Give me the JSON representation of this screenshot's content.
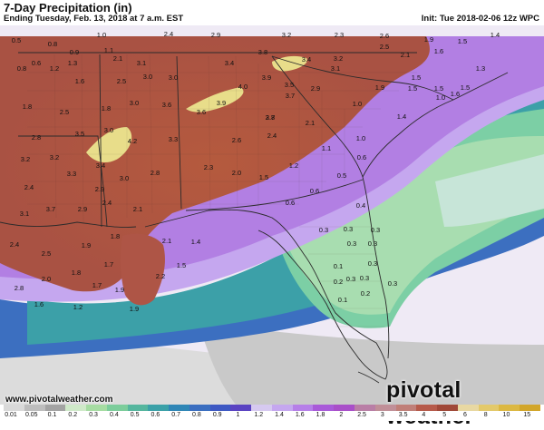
{
  "header": {
    "title": "7-Day Precipitation (in)",
    "subtitle": "Ending Tuesday, Feb. 13, 2018 at 7 a.m. EST",
    "init": "Init: Tue 2018-02-06 12z WPC"
  },
  "footer": {
    "website": "www.pivotalweather.com",
    "brand": "pivotal weather"
  },
  "colorbar": {
    "ticks": [
      "0.01",
      "0.05",
      "0.1",
      "0.2",
      "0.3",
      "0.4",
      "0.5",
      "0.6",
      "0.7",
      "0.8",
      "0.9",
      "1",
      "1.2",
      "1.4",
      "1.6",
      "1.8",
      "2",
      "2.5",
      "3",
      "3.5",
      "4",
      "5",
      "6",
      "8",
      "10",
      "15"
    ],
    "colors": [
      "#d9d9d9",
      "#bdbdbd",
      "#a3a3a3",
      "#cfe9c9",
      "#a6dca2",
      "#7ccd9b",
      "#55b69e",
      "#3ba1a8",
      "#2f86b6",
      "#3a6ec0",
      "#3d58c3",
      "#5a43c2",
      "#d6c9f0",
      "#c5a7ef",
      "#b67fe8",
      "#a95ad9",
      "#a94fc9",
      "#b97ea6",
      "#c08f98",
      "#c07f78",
      "#b65a4a",
      "#a04838",
      "#e8d8a2",
      "#e3c96a",
      "#dcb842",
      "#d2a62a"
    ]
  },
  "map": {
    "region": "Southeastern United States",
    "accent_colors": {
      "heavy": "#a95243",
      "peak": "#e8dd8a",
      "moderate": "#b77ed8",
      "light": "#7ccfa5",
      "minimal": "#a3a3a3"
    },
    "values": [
      {
        "t": "0.5"
      },
      {
        "t": "0.8"
      },
      {
        "t": "1.0"
      },
      {
        "t": "2.4"
      },
      {
        "t": "2.9"
      },
      {
        "t": "3.2"
      },
      {
        "t": "2.3"
      },
      {
        "t": "2.6"
      },
      {
        "t": "1.9"
      },
      {
        "t": "1.5"
      },
      {
        "t": "1.4"
      },
      {
        "t": "0.6"
      },
      {
        "t": "0.9"
      },
      {
        "t": "1.1"
      },
      {
        "t": "2.5"
      },
      {
        "t": "1.3"
      },
      {
        "t": "2.1"
      },
      {
        "t": "3.1"
      },
      {
        "t": "3.4"
      },
      {
        "t": "3.8"
      },
      {
        "t": "3.4"
      },
      {
        "t": "3.2"
      },
      {
        "t": "2.1"
      },
      {
        "t": "1.6"
      },
      {
        "t": "0.8"
      },
      {
        "t": "1.2"
      },
      {
        "t": "1.6"
      },
      {
        "t": "2.5"
      },
      {
        "t": "3.0"
      },
      {
        "t": "3.0"
      },
      {
        "t": "3.9"
      },
      {
        "t": "3.1"
      },
      {
        "t": "1.5"
      },
      {
        "t": "1.3"
      },
      {
        "t": "1.8"
      },
      {
        "t": "3.6"
      },
      {
        "t": "4.0"
      },
      {
        "t": "3.5"
      },
      {
        "t": "2.9"
      },
      {
        "t": "1.9"
      },
      {
        "t": "1.5"
      },
      {
        "t": "1.5"
      },
      {
        "t": "1.8"
      },
      {
        "t": "3.0"
      },
      {
        "t": "3.9"
      },
      {
        "t": "3.7"
      },
      {
        "t": "1.5"
      },
      {
        "t": "1.6"
      },
      {
        "t": "1.0"
      },
      {
        "t": "2.5"
      },
      {
        "t": "3.0"
      },
      {
        "t": "3.6"
      },
      {
        "t": "3.8"
      },
      {
        "t": "2.7"
      },
      {
        "t": "2.1"
      },
      {
        "t": "1.0"
      },
      {
        "t": "1.4"
      },
      {
        "t": "2.8"
      },
      {
        "t": "3.5"
      },
      {
        "t": "4.2"
      },
      {
        "t": "3.3"
      },
      {
        "t": "2.6"
      },
      {
        "t": "2.4"
      },
      {
        "t": "1.0"
      },
      {
        "t": "3.2"
      },
      {
        "t": "3.3"
      },
      {
        "t": "3.4"
      },
      {
        "t": "2.3"
      },
      {
        "t": "1.1"
      },
      {
        "t": "0.6"
      },
      {
        "t": "3.2"
      },
      {
        "t": "3.0"
      },
      {
        "t": "2.8"
      },
      {
        "t": "2.0"
      },
      {
        "t": "1.2"
      },
      {
        "t": "0.5"
      },
      {
        "t": "2.4"
      },
      {
        "t": "2.9"
      },
      {
        "t": "2.4"
      },
      {
        "t": "1.5"
      },
      {
        "t": "0.6"
      },
      {
        "t": "3.1"
      },
      {
        "t": "3.7"
      },
      {
        "t": "2.9"
      },
      {
        "t": "2.1"
      },
      {
        "t": "0.6"
      },
      {
        "t": "0.4"
      },
      {
        "t": "2.4"
      },
      {
        "t": "1.9"
      },
      {
        "t": "1.8"
      },
      {
        "t": "2.1"
      },
      {
        "t": "1.4"
      },
      {
        "t": "0.3"
      },
      {
        "t": "0.3"
      },
      {
        "t": "0.3"
      },
      {
        "t": "2.5"
      },
      {
        "t": "1.7"
      },
      {
        "t": "1.5"
      },
      {
        "t": "0.3"
      },
      {
        "t": "0.3"
      },
      {
        "t": "2.0"
      },
      {
        "t": "1.8"
      },
      {
        "t": "2.2"
      },
      {
        "t": "0.1"
      },
      {
        "t": "0.3"
      },
      {
        "t": "0.3"
      },
      {
        "t": "2.8"
      },
      {
        "t": "1.7"
      },
      {
        "t": "1.9"
      },
      {
        "t": "0.2"
      },
      {
        "t": "0.3"
      },
      {
        "t": "0.3"
      },
      {
        "t": "1.6"
      },
      {
        "t": "1.2"
      },
      {
        "t": "1.9"
      },
      {
        "t": "0.1"
      },
      {
        "t": "0.2"
      }
    ]
  }
}
